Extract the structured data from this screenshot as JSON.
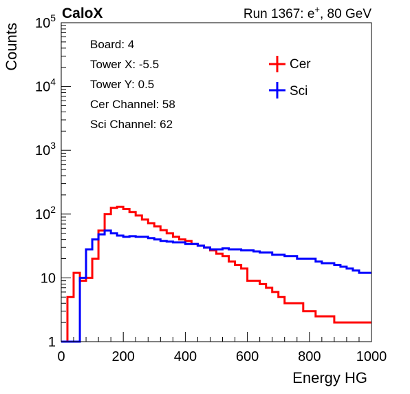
{
  "chart_data": {
    "type": "line",
    "title": "CaloX",
    "subtitle_prefix": "Run 1367: e",
    "subtitle_sup": "+",
    "subtitle_suffix": ", 80 GeV",
    "xlabel": "Energy HG",
    "ylabel": "Counts",
    "xlim": [
      0,
      1000
    ],
    "ylim": [
      1,
      100000
    ],
    "y_scale": "log",
    "grid": false,
    "legend_position": "top-right",
    "x_ticks": [
      "0",
      "200",
      "400",
      "600",
      "800",
      "1000"
    ],
    "y_ticks": [
      {
        "base": "1",
        "exp": ""
      },
      {
        "base": "10",
        "exp": ""
      },
      {
        "base": "10",
        "exp": "2"
      },
      {
        "base": "10",
        "exp": "3"
      },
      {
        "base": "10",
        "exp": "4"
      },
      {
        "base": "10",
        "exp": "5"
      }
    ],
    "annotations": [
      "Board: 4",
      "Tower X: -5.5",
      "Tower Y: 0.5",
      "Cer Channel: 58",
      "Sci Channel: 62"
    ],
    "series": [
      {
        "name": "Cer",
        "color": "#ff0000",
        "x": [
          0,
          20,
          40,
          60,
          80,
          100,
          120,
          140,
          160,
          180,
          200,
          220,
          240,
          260,
          280,
          300,
          320,
          340,
          360,
          380,
          400,
          420,
          440,
          460,
          480,
          500,
          520,
          540,
          560,
          580,
          600,
          620,
          640,
          660,
          680,
          700,
          720,
          740,
          760,
          780,
          800,
          820,
          840,
          860,
          880,
          900,
          920,
          940,
          960,
          980,
          1000
        ],
        "y": [
          1,
          5,
          12,
          9,
          10,
          20,
          55,
          100,
          125,
          130,
          120,
          108,
          95,
          82,
          72,
          64,
          56,
          50,
          44,
          40,
          38,
          34,
          32,
          30,
          27,
          24,
          22,
          18,
          16,
          14,
          9,
          9,
          8,
          7,
          6,
          5,
          4,
          4,
          4,
          3,
          3,
          2.5,
          2.5,
          2.5,
          2,
          2,
          2,
          2,
          2,
          2,
          2
        ]
      },
      {
        "name": "Sci",
        "color": "#0000ff",
        "x": [
          0,
          20,
          40,
          60,
          80,
          100,
          120,
          140,
          160,
          180,
          200,
          220,
          240,
          260,
          280,
          300,
          320,
          340,
          360,
          380,
          400,
          420,
          440,
          460,
          480,
          500,
          520,
          540,
          560,
          580,
          600,
          620,
          640,
          660,
          680,
          700,
          720,
          740,
          760,
          780,
          800,
          820,
          840,
          860,
          880,
          900,
          920,
          940,
          960,
          980,
          1000
        ],
        "y": [
          1,
          1,
          1,
          10,
          28,
          40,
          48,
          55,
          50,
          46,
          44,
          45,
          44,
          44,
          42,
          40,
          38,
          37,
          36,
          36,
          34,
          34,
          32,
          30,
          28,
          28,
          29,
          28,
          28,
          27,
          27,
          26,
          25,
          25,
          23,
          23,
          22,
          22,
          20,
          20,
          20,
          18,
          17,
          17,
          16,
          15,
          14,
          13,
          12,
          12,
          11
        ]
      }
    ]
  }
}
